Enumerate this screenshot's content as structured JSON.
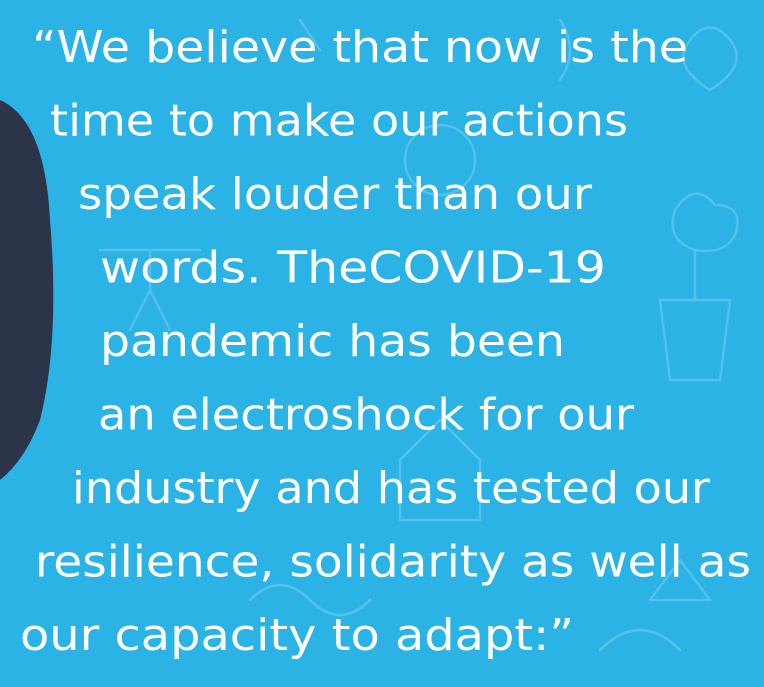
{
  "quote": {
    "lines": [
      "“We believe that now is the",
      "time to make our actions",
      "speak louder than our",
      "words. TheCOVID-19",
      "pandemic has been",
      "an electroshock for our",
      "industry and has tested our",
      "resilience, solidarity as well as",
      "our capacity to adapt:”"
    ]
  }
}
